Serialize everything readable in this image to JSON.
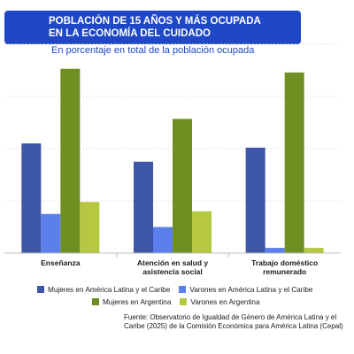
{
  "title": {
    "line1": "POBLACIÓN DE 15 AÑOS Y MÁS OCUPADA",
    "line2": "EN LA ECONOMÍA DEL CUIDADO"
  },
  "subtitle": "En porcentaje en total de la población ocupada",
  "source_text": "Fuente:  Observatorio de Igualdad de Género de América Latina y el Caribe (2025) de la Comisión Económica para América Latina (Cepal)",
  "chart_data": {
    "type": "bar",
    "title": "POBLACIÓN DE 15 AÑOS Y MÁS OCUPADA EN LA ECONOMÍA DEL CUIDADO",
    "subtitle": "En porcentaje en total de la población ocupada",
    "categories": [
      [
        "Enseñanza"
      ],
      [
        "Atención en salud y",
        "asistencia social"
      ],
      [
        "Trabajo doméstico",
        "remunerado"
      ]
    ],
    "series": [
      {
        "name": "Mujeres en América Latina y el Caribe",
        "color": "#3e56a8",
        "values": [
          21,
          17.5,
          20.2
        ]
      },
      {
        "name": "Varones en América Latina y el Caribe",
        "color": "#5b7fec",
        "values": [
          7.5,
          5,
          1
        ]
      },
      {
        "name": "Mujeres en Argentina",
        "color": "#6f8f23",
        "values": [
          35.3,
          25.7,
          34.6
        ]
      },
      {
        "name": "Varones en Argentina",
        "color": "#b6c841",
        "values": [
          9.8,
          8,
          1
        ]
      }
    ],
    "ylim": [
      0,
      40
    ],
    "grid": true,
    "axis_tick_labels": false,
    "legend_position": "bottom"
  }
}
